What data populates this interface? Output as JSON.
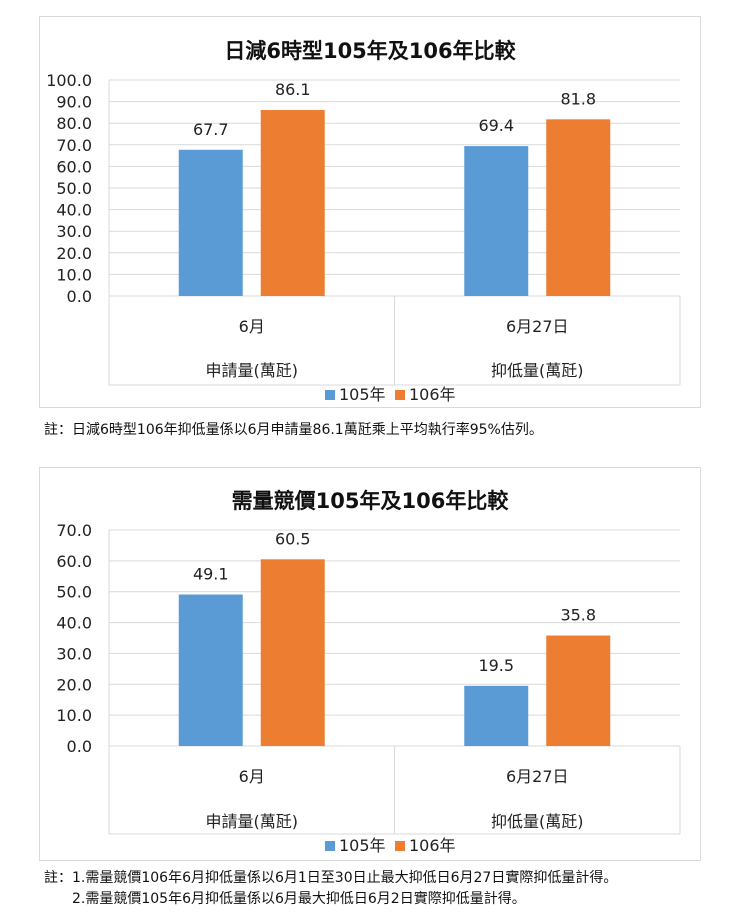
{
  "chart_data": [
    {
      "type": "bar",
      "title": "日減6時型105年及106年比較",
      "categories": [
        "6月",
        "6月27日"
      ],
      "category_groups": [
        "申請量(萬瓩)",
        "抑低量(萬瓩)"
      ],
      "series": [
        {
          "name": "105年",
          "values": [
            67.7,
            69.4
          ],
          "color": "#5b9bd5"
        },
        {
          "name": "106年",
          "values": [
            86.1,
            81.8
          ],
          "color": "#ed7d31"
        }
      ],
      "ylim": [
        0,
        100
      ],
      "ystep": 10,
      "ytick_labels": [
        "0.0",
        "10.0",
        "20.0",
        "30.0",
        "40.0",
        "50.0",
        "60.0",
        "70.0",
        "80.0",
        "90.0",
        "100.0"
      ],
      "data_labels": [
        [
          "67.7",
          "69.4"
        ],
        [
          "86.1",
          "81.8"
        ]
      ],
      "grid": true,
      "legend": "bottom"
    },
    {
      "type": "bar",
      "title": "需量競價105年及106年比較",
      "categories": [
        "6月",
        "6月27日"
      ],
      "category_groups": [
        "申請量(萬瓩)",
        "抑低量(萬瓩)"
      ],
      "series": [
        {
          "name": "105年",
          "values": [
            49.1,
            19.5
          ],
          "color": "#5b9bd5"
        },
        {
          "name": "106年",
          "values": [
            60.5,
            35.8
          ],
          "color": "#ed7d31"
        }
      ],
      "ylim": [
        0,
        70
      ],
      "ystep": 10,
      "ytick_labels": [
        "0.0",
        "10.0",
        "20.0",
        "30.0",
        "40.0",
        "50.0",
        "60.0",
        "70.0"
      ],
      "data_labels": [
        [
          "49.1",
          "19.5"
        ],
        [
          "60.5",
          "35.8"
        ]
      ],
      "grid": true,
      "legend": "bottom"
    }
  ],
  "notes": {
    "note1": "註：日減6時型106年抑低量係以6月申請量86.1萬瓩乘上平均執行率95%估列。",
    "note2_line1": "註：1.需量競價106年6月抑低量係以6月1日至30日止最大抑低日6月27日實際抑低量計得。",
    "note2_line2": "2.需量競價105年6月抑低量係以6月最大抑低日6月2日實際抑低量計得。"
  }
}
